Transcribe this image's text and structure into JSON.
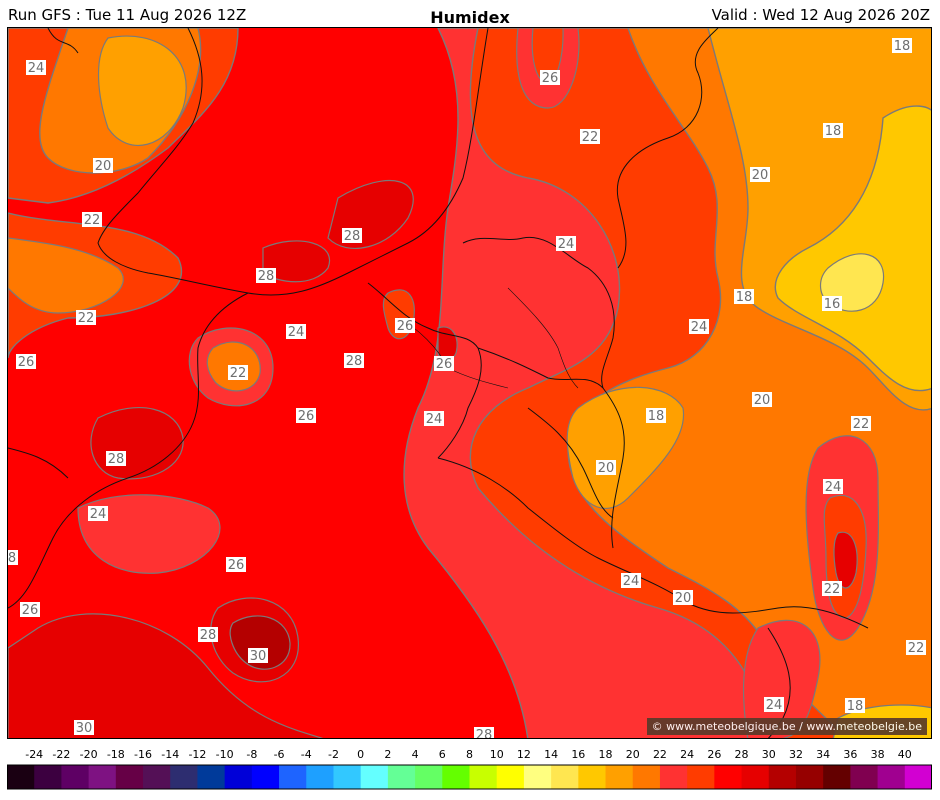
{
  "header": {
    "run": "Run GFS : Tue 11 Aug 2026 12Z",
    "title": "Humidex",
    "valid": "Valid : Wed 12 Aug 2026 20Z"
  },
  "copyright": "© www.meteobelgique.be / www.meteobelgie.be",
  "contour_labels": [
    "24",
    "20",
    "22",
    "22",
    "26",
    "28",
    "28",
    "24",
    "22",
    "26",
    "28",
    "26",
    "26",
    "24",
    "28",
    "24",
    "26",
    "8",
    "26",
    "28",
    "30",
    "30",
    "28",
    "26",
    "22",
    "18",
    "18",
    "20",
    "24",
    "18",
    "24",
    "16",
    "20",
    "18",
    "22",
    "20",
    "24",
    "24",
    "22",
    "20",
    "24",
    "22",
    "18"
  ],
  "legend": {
    "ticks": [
      "-24",
      "-22",
      "-20",
      "-18",
      "-16",
      "-14",
      "-12",
      "-10",
      "-8",
      "-6",
      "-4",
      "-2",
      "0",
      "2",
      "4",
      "6",
      "8",
      "10",
      "12",
      "14",
      "16",
      "18",
      "20",
      "22",
      "24",
      "26",
      "28",
      "30",
      "32",
      "34",
      "36",
      "38",
      "40"
    ],
    "colors": [
      "#1a0012",
      "#3c0040",
      "#5e0064",
      "#7e1282",
      "#660046",
      "#541056",
      "#2d2d70",
      "#003a9a",
      "#0000d8",
      "#0000ff",
      "#1e64ff",
      "#1ea0ff",
      "#32c8ff",
      "#64ffff",
      "#64ff96",
      "#64ff64",
      "#64ff00",
      "#c8ff00",
      "#ffff00",
      "#ffff80",
      "#ffe650",
      "#ffc800",
      "#ffa000",
      "#ff7800",
      "#ff3232",
      "#ff3c00",
      "#ff0000",
      "#e60000",
      "#b40000",
      "#960000",
      "#640000",
      "#800050",
      "#a00090",
      "#d200d2"
    ]
  }
}
